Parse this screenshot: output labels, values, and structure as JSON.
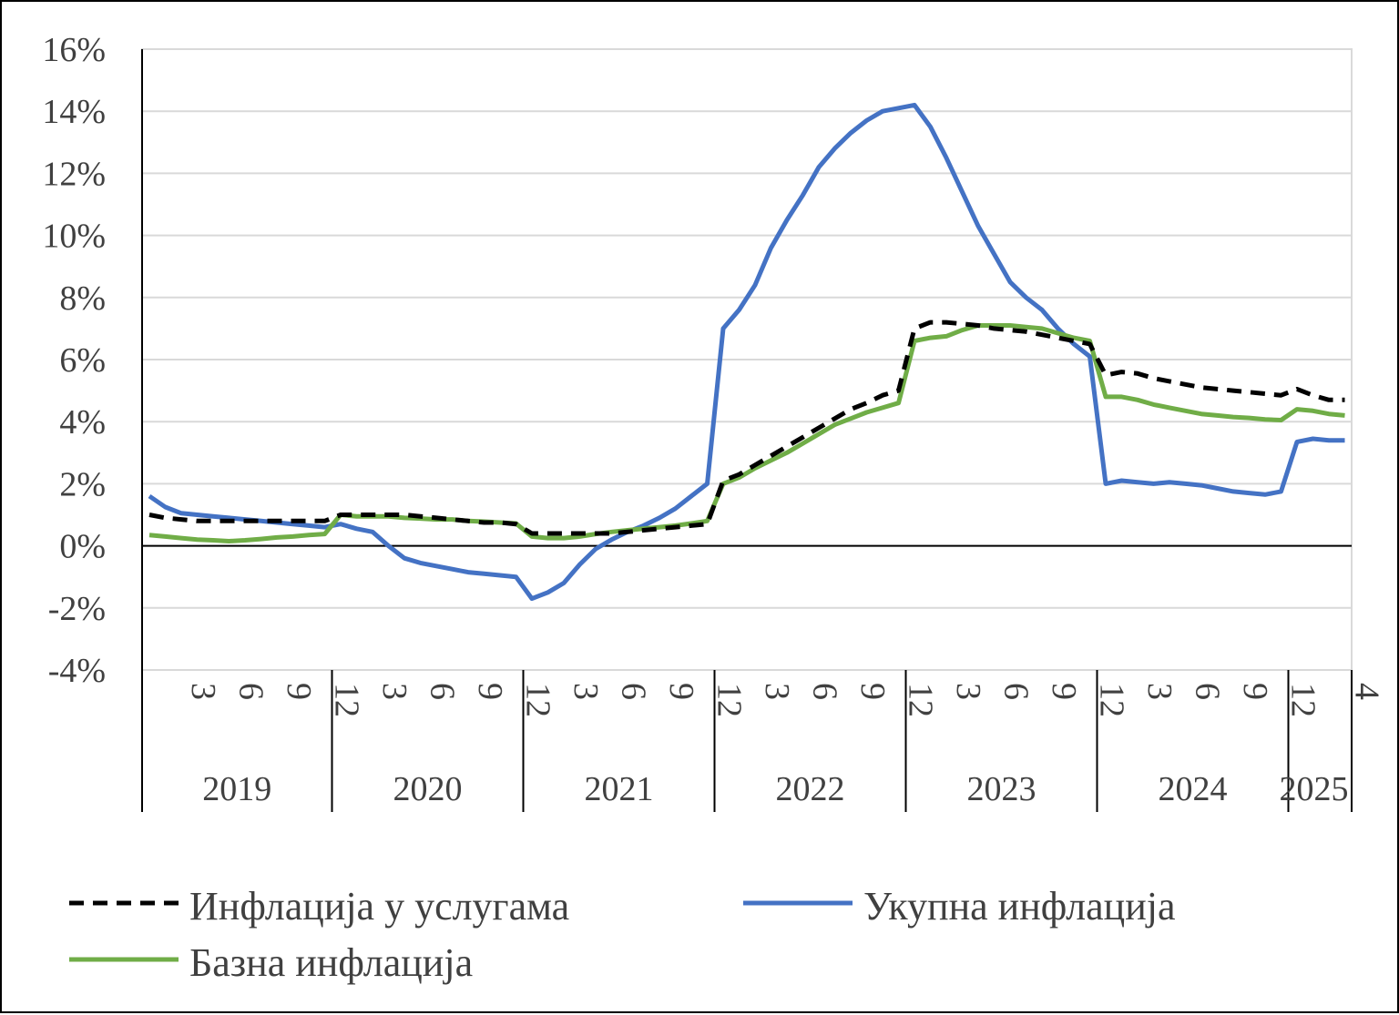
{
  "chart_data": {
    "type": "line",
    "title": "",
    "xlabel": "",
    "ylabel": "",
    "ylim": [
      -4,
      16
    ],
    "y_ticks": [
      -4,
      -2,
      0,
      2,
      4,
      6,
      8,
      10,
      12,
      14,
      16
    ],
    "y_tick_suffix": "%",
    "grid": true,
    "legend_position": "bottom",
    "x_start": "2019-01",
    "x_end": "2025-04",
    "month_ticks": [
      {
        "month": "2019-03",
        "label": "3"
      },
      {
        "month": "2019-06",
        "label": "6"
      },
      {
        "month": "2019-09",
        "label": "9"
      },
      {
        "month": "2019-12",
        "label": "12"
      },
      {
        "month": "2020-03",
        "label": "3"
      },
      {
        "month": "2020-06",
        "label": "6"
      },
      {
        "month": "2020-09",
        "label": "9"
      },
      {
        "month": "2020-12",
        "label": "12"
      },
      {
        "month": "2021-03",
        "label": "3"
      },
      {
        "month": "2021-06",
        "label": "6"
      },
      {
        "month": "2021-09",
        "label": "9"
      },
      {
        "month": "2021-12",
        "label": "12"
      },
      {
        "month": "2022-03",
        "label": "3"
      },
      {
        "month": "2022-06",
        "label": "6"
      },
      {
        "month": "2022-09",
        "label": "9"
      },
      {
        "month": "2022-12",
        "label": "12"
      },
      {
        "month": "2023-03",
        "label": "3"
      },
      {
        "month": "2023-06",
        "label": "6"
      },
      {
        "month": "2023-09",
        "label": "9"
      },
      {
        "month": "2023-12",
        "label": "12"
      },
      {
        "month": "2024-03",
        "label": "3"
      },
      {
        "month": "2024-06",
        "label": "6"
      },
      {
        "month": "2024-09",
        "label": "9"
      },
      {
        "month": "2024-12",
        "label": "12"
      },
      {
        "month": "2025-04",
        "label": "4"
      }
    ],
    "year_labels": [
      "2019",
      "2020",
      "2021",
      "2022",
      "2023",
      "2024",
      "2025"
    ],
    "series": [
      {
        "name": "Инфлација у услугама",
        "color": "#000000",
        "style": "dashed",
        "values": [
          [
            "2019-01",
            1.0
          ],
          [
            "2019-02",
            0.9
          ],
          [
            "2019-03",
            0.85
          ],
          [
            "2019-04",
            0.8
          ],
          [
            "2019-05",
            0.8
          ],
          [
            "2019-06",
            0.8
          ],
          [
            "2019-07",
            0.8
          ],
          [
            "2019-08",
            0.8
          ],
          [
            "2019-09",
            0.8
          ],
          [
            "2019-10",
            0.8
          ],
          [
            "2019-11",
            0.8
          ],
          [
            "2019-12",
            0.8
          ],
          [
            "2020-01",
            1.0
          ],
          [
            "2020-02",
            1.0
          ],
          [
            "2020-03",
            1.0
          ],
          [
            "2020-04",
            1.0
          ],
          [
            "2020-05",
            1.0
          ],
          [
            "2020-06",
            0.95
          ],
          [
            "2020-07",
            0.9
          ],
          [
            "2020-08",
            0.85
          ],
          [
            "2020-09",
            0.8
          ],
          [
            "2020-10",
            0.75
          ],
          [
            "2020-11",
            0.75
          ],
          [
            "2020-12",
            0.7
          ],
          [
            "2021-01",
            0.4
          ],
          [
            "2021-02",
            0.4
          ],
          [
            "2021-03",
            0.4
          ],
          [
            "2021-04",
            0.4
          ],
          [
            "2021-05",
            0.4
          ],
          [
            "2021-06",
            0.4
          ],
          [
            "2021-07",
            0.45
          ],
          [
            "2021-08",
            0.5
          ],
          [
            "2021-09",
            0.55
          ],
          [
            "2021-10",
            0.6
          ],
          [
            "2021-11",
            0.65
          ],
          [
            "2021-12",
            0.7
          ],
          [
            "2022-01",
            2.1
          ],
          [
            "2022-02",
            2.3
          ],
          [
            "2022-03",
            2.6
          ],
          [
            "2022-04",
            2.9
          ],
          [
            "2022-05",
            3.2
          ],
          [
            "2022-06",
            3.5
          ],
          [
            "2022-07",
            3.8
          ],
          [
            "2022-08",
            4.1
          ],
          [
            "2022-09",
            4.4
          ],
          [
            "2022-10",
            4.6
          ],
          [
            "2022-11",
            4.85
          ],
          [
            "2022-12",
            5.0
          ],
          [
            "2023-01",
            7.0
          ],
          [
            "2023-02",
            7.2
          ],
          [
            "2023-03",
            7.2
          ],
          [
            "2023-04",
            7.15
          ],
          [
            "2023-05",
            7.1
          ],
          [
            "2023-06",
            7.0
          ],
          [
            "2023-07",
            6.95
          ],
          [
            "2023-08",
            6.9
          ],
          [
            "2023-09",
            6.8
          ],
          [
            "2023-10",
            6.7
          ],
          [
            "2023-11",
            6.6
          ],
          [
            "2023-12",
            6.5
          ],
          [
            "2024-01",
            5.5
          ],
          [
            "2024-02",
            5.6
          ],
          [
            "2024-03",
            5.55
          ],
          [
            "2024-04",
            5.4
          ],
          [
            "2024-05",
            5.3
          ],
          [
            "2024-06",
            5.2
          ],
          [
            "2024-07",
            5.1
          ],
          [
            "2024-08",
            5.05
          ],
          [
            "2024-09",
            5.0
          ],
          [
            "2024-10",
            4.95
          ],
          [
            "2024-11",
            4.9
          ],
          [
            "2024-12",
            4.85
          ],
          [
            "2025-01",
            5.05
          ],
          [
            "2025-02",
            4.85
          ],
          [
            "2025-03",
            4.7
          ],
          [
            "2025-04",
            4.7
          ]
        ]
      },
      {
        "name": "Укупна инфлација",
        "color": "#4472C4",
        "style": "solid",
        "values": [
          [
            "2019-01",
            1.6
          ],
          [
            "2019-02",
            1.25
          ],
          [
            "2019-03",
            1.05
          ],
          [
            "2019-04",
            1.0
          ],
          [
            "2019-05",
            0.95
          ],
          [
            "2019-06",
            0.9
          ],
          [
            "2019-07",
            0.85
          ],
          [
            "2019-08",
            0.8
          ],
          [
            "2019-09",
            0.75
          ],
          [
            "2019-10",
            0.7
          ],
          [
            "2019-11",
            0.65
          ],
          [
            "2019-12",
            0.6
          ],
          [
            "2020-01",
            0.7
          ],
          [
            "2020-02",
            0.55
          ],
          [
            "2020-03",
            0.45
          ],
          [
            "2020-04",
            0.0
          ],
          [
            "2020-05",
            -0.4
          ],
          [
            "2020-06",
            -0.55
          ],
          [
            "2020-07",
            -0.65
          ],
          [
            "2020-08",
            -0.75
          ],
          [
            "2020-09",
            -0.85
          ],
          [
            "2020-10",
            -0.9
          ],
          [
            "2020-11",
            -0.95
          ],
          [
            "2020-12",
            -1.0
          ],
          [
            "2021-01",
            -1.7
          ],
          [
            "2021-02",
            -1.5
          ],
          [
            "2021-03",
            -1.2
          ],
          [
            "2021-04",
            -0.6
          ],
          [
            "2021-05",
            -0.1
          ],
          [
            "2021-06",
            0.2
          ],
          [
            "2021-07",
            0.45
          ],
          [
            "2021-08",
            0.65
          ],
          [
            "2021-09",
            0.9
          ],
          [
            "2021-10",
            1.2
          ],
          [
            "2021-11",
            1.6
          ],
          [
            "2021-12",
            2.0
          ],
          [
            "2022-01",
            7.0
          ],
          [
            "2022-02",
            7.6
          ],
          [
            "2022-03",
            8.4
          ],
          [
            "2022-04",
            9.6
          ],
          [
            "2022-05",
            10.5
          ],
          [
            "2022-06",
            11.3
          ],
          [
            "2022-07",
            12.2
          ],
          [
            "2022-08",
            12.8
          ],
          [
            "2022-09",
            13.3
          ],
          [
            "2022-10",
            13.7
          ],
          [
            "2022-11",
            14.0
          ],
          [
            "2022-12",
            14.1
          ],
          [
            "2023-01",
            14.2
          ],
          [
            "2023-02",
            13.5
          ],
          [
            "2023-03",
            12.5
          ],
          [
            "2023-04",
            11.4
          ],
          [
            "2023-05",
            10.3
          ],
          [
            "2023-06",
            9.4
          ],
          [
            "2023-07",
            8.5
          ],
          [
            "2023-08",
            8.0
          ],
          [
            "2023-09",
            7.6
          ],
          [
            "2023-10",
            7.0
          ],
          [
            "2023-11",
            6.5
          ],
          [
            "2023-12",
            6.1
          ],
          [
            "2024-01",
            2.0
          ],
          [
            "2024-02",
            2.1
          ],
          [
            "2024-03",
            2.05
          ],
          [
            "2024-04",
            2.0
          ],
          [
            "2024-05",
            2.05
          ],
          [
            "2024-06",
            2.0
          ],
          [
            "2024-07",
            1.95
          ],
          [
            "2024-08",
            1.85
          ],
          [
            "2024-09",
            1.75
          ],
          [
            "2024-10",
            1.7
          ],
          [
            "2024-11",
            1.65
          ],
          [
            "2024-12",
            1.75
          ],
          [
            "2025-01",
            3.35
          ],
          [
            "2025-02",
            3.45
          ],
          [
            "2025-03",
            3.4
          ],
          [
            "2025-04",
            3.4
          ]
        ]
      },
      {
        "name": "Базна инфлација",
        "color": "#70AD47",
        "style": "solid",
        "values": [
          [
            "2019-01",
            0.35
          ],
          [
            "2019-02",
            0.3
          ],
          [
            "2019-03",
            0.25
          ],
          [
            "2019-04",
            0.2
          ],
          [
            "2019-05",
            0.18
          ],
          [
            "2019-06",
            0.15
          ],
          [
            "2019-07",
            0.18
          ],
          [
            "2019-08",
            0.22
          ],
          [
            "2019-09",
            0.27
          ],
          [
            "2019-10",
            0.3
          ],
          [
            "2019-11",
            0.35
          ],
          [
            "2019-12",
            0.38
          ],
          [
            "2020-01",
            1.0
          ],
          [
            "2020-02",
            0.95
          ],
          [
            "2020-03",
            0.95
          ],
          [
            "2020-04",
            0.95
          ],
          [
            "2020-05",
            0.9
          ],
          [
            "2020-06",
            0.88
          ],
          [
            "2020-07",
            0.85
          ],
          [
            "2020-08",
            0.85
          ],
          [
            "2020-09",
            0.8
          ],
          [
            "2020-10",
            0.78
          ],
          [
            "2020-11",
            0.75
          ],
          [
            "2020-12",
            0.72
          ],
          [
            "2021-01",
            0.3
          ],
          [
            "2021-02",
            0.25
          ],
          [
            "2021-03",
            0.25
          ],
          [
            "2021-04",
            0.3
          ],
          [
            "2021-05",
            0.38
          ],
          [
            "2021-06",
            0.45
          ],
          [
            "2021-07",
            0.5
          ],
          [
            "2021-08",
            0.55
          ],
          [
            "2021-09",
            0.6
          ],
          [
            "2021-10",
            0.65
          ],
          [
            "2021-11",
            0.72
          ],
          [
            "2021-12",
            0.8
          ],
          [
            "2022-01",
            2.0
          ],
          [
            "2022-02",
            2.2
          ],
          [
            "2022-03",
            2.5
          ],
          [
            "2022-04",
            2.75
          ],
          [
            "2022-05",
            3.0
          ],
          [
            "2022-06",
            3.3
          ],
          [
            "2022-07",
            3.6
          ],
          [
            "2022-08",
            3.9
          ],
          [
            "2022-09",
            4.1
          ],
          [
            "2022-10",
            4.3
          ],
          [
            "2022-11",
            4.45
          ],
          [
            "2022-12",
            4.6
          ],
          [
            "2023-01",
            6.6
          ],
          [
            "2023-02",
            6.7
          ],
          [
            "2023-03",
            6.75
          ],
          [
            "2023-04",
            6.95
          ],
          [
            "2023-05",
            7.1
          ],
          [
            "2023-06",
            7.1
          ],
          [
            "2023-07",
            7.1
          ],
          [
            "2023-08",
            7.05
          ],
          [
            "2023-09",
            7.0
          ],
          [
            "2023-10",
            6.85
          ],
          [
            "2023-11",
            6.7
          ],
          [
            "2023-12",
            6.6
          ],
          [
            "2024-01",
            4.8
          ],
          [
            "2024-02",
            4.8
          ],
          [
            "2024-03",
            4.7
          ],
          [
            "2024-04",
            4.55
          ],
          [
            "2024-05",
            4.45
          ],
          [
            "2024-06",
            4.35
          ],
          [
            "2024-07",
            4.25
          ],
          [
            "2024-08",
            4.2
          ],
          [
            "2024-09",
            4.15
          ],
          [
            "2024-10",
            4.12
          ],
          [
            "2024-11",
            4.07
          ],
          [
            "2024-12",
            4.05
          ],
          [
            "2025-01",
            4.4
          ],
          [
            "2025-02",
            4.35
          ],
          [
            "2025-03",
            4.25
          ],
          [
            "2025-04",
            4.2
          ]
        ]
      }
    ]
  }
}
